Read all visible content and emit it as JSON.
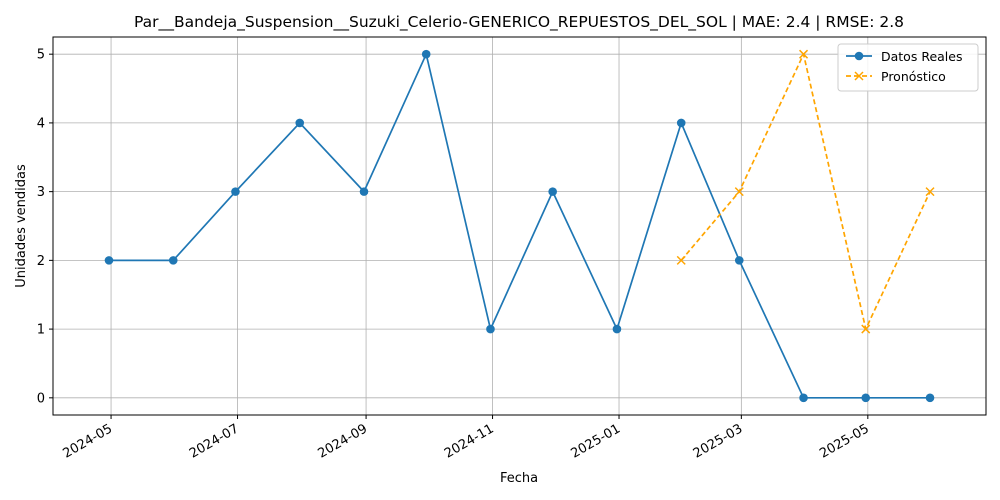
{
  "chart_data": {
    "type": "line",
    "title": "Par__Bandeja_Suspension__Suzuki_Celerio-GENERICO_REPUESTOS_DEL_SOL | MAE: 2.4 | RMSE: 2.8",
    "xlabel": "Fecha",
    "ylabel": "Unidades vendidas",
    "xlim": [
      "2024-04-03",
      "2025-06-27"
    ],
    "ylim": [
      -0.25,
      5.25
    ],
    "x_ticks": [
      "2024-05",
      "2024-07",
      "2024-09",
      "2024-11",
      "2025-01",
      "2025-03",
      "2025-05"
    ],
    "x_tick_dates": [
      "2024-05-01",
      "2024-07-01",
      "2024-09-01",
      "2024-11-01",
      "2025-01-01",
      "2025-03-01",
      "2025-05-01"
    ],
    "y_ticks": [
      0,
      1,
      2,
      3,
      4,
      5
    ],
    "grid": true,
    "legend_position": "top-right",
    "series": [
      {
        "name": "Datos Reales",
        "color": "#1f77b4",
        "style": "solid",
        "marker": "circle",
        "x": [
          "2024-04-30",
          "2024-05-31",
          "2024-06-30",
          "2024-07-31",
          "2024-08-31",
          "2024-09-30",
          "2024-10-31",
          "2024-11-30",
          "2024-12-31",
          "2025-01-31",
          "2025-02-28",
          "2025-03-31",
          "2025-04-30",
          "2025-05-31"
        ],
        "y": [
          2,
          2,
          3,
          4,
          3,
          5,
          1,
          3,
          1,
          4,
          2,
          0,
          0,
          0
        ]
      },
      {
        "name": "Pronóstico",
        "color": "#ffa500",
        "style": "dashed",
        "marker": "x",
        "x": [
          "2025-01-31",
          "2025-02-28",
          "2025-03-31",
          "2025-04-30",
          "2025-05-31"
        ],
        "y": [
          2,
          3,
          5,
          1,
          3
        ]
      }
    ]
  }
}
